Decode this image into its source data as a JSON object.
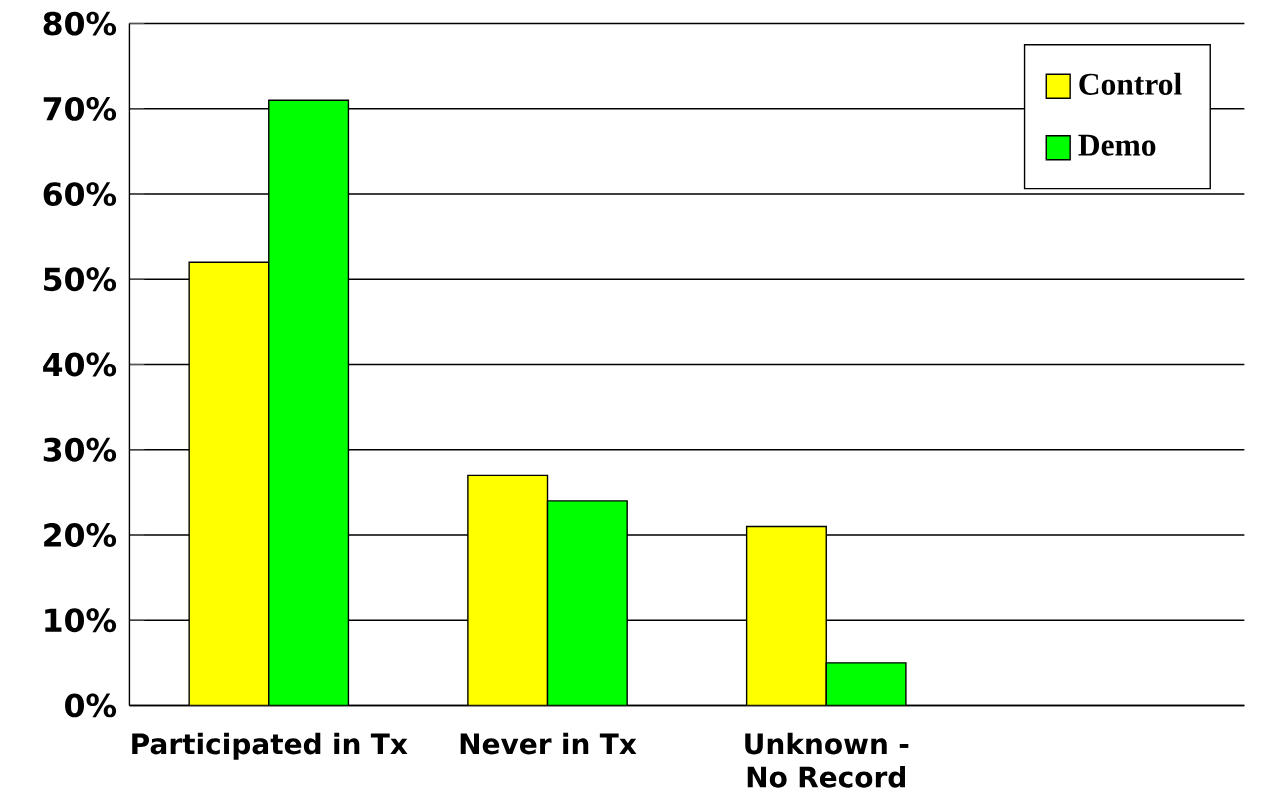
{
  "chart_data": {
    "type": "bar",
    "categories": [
      "Participated in Tx",
      "Never in Tx",
      "Unknown - No Record",
      null
    ],
    "series": [
      {
        "name": "Control",
        "color": "#ffff00",
        "values": [
          52,
          27,
          21,
          null
        ]
      },
      {
        "name": "Demo",
        "color": "#00ff00",
        "values": [
          71,
          24,
          5,
          null
        ]
      }
    ],
    "ylim": [
      0,
      80
    ],
    "yticks": [
      {
        "value": 0,
        "label": "0%"
      },
      {
        "value": 10,
        "label": "10%"
      },
      {
        "value": 20,
        "label": "20%"
      },
      {
        "value": 30,
        "label": "30%"
      },
      {
        "value": 40,
        "label": "40%"
      },
      {
        "value": 50,
        "label": "50%"
      },
      {
        "value": 60,
        "label": "60%"
      },
      {
        "value": 70,
        "label": "70%"
      },
      {
        "value": 80,
        "label": "80%"
      }
    ],
    "grid": "y",
    "legend": "top right"
  }
}
